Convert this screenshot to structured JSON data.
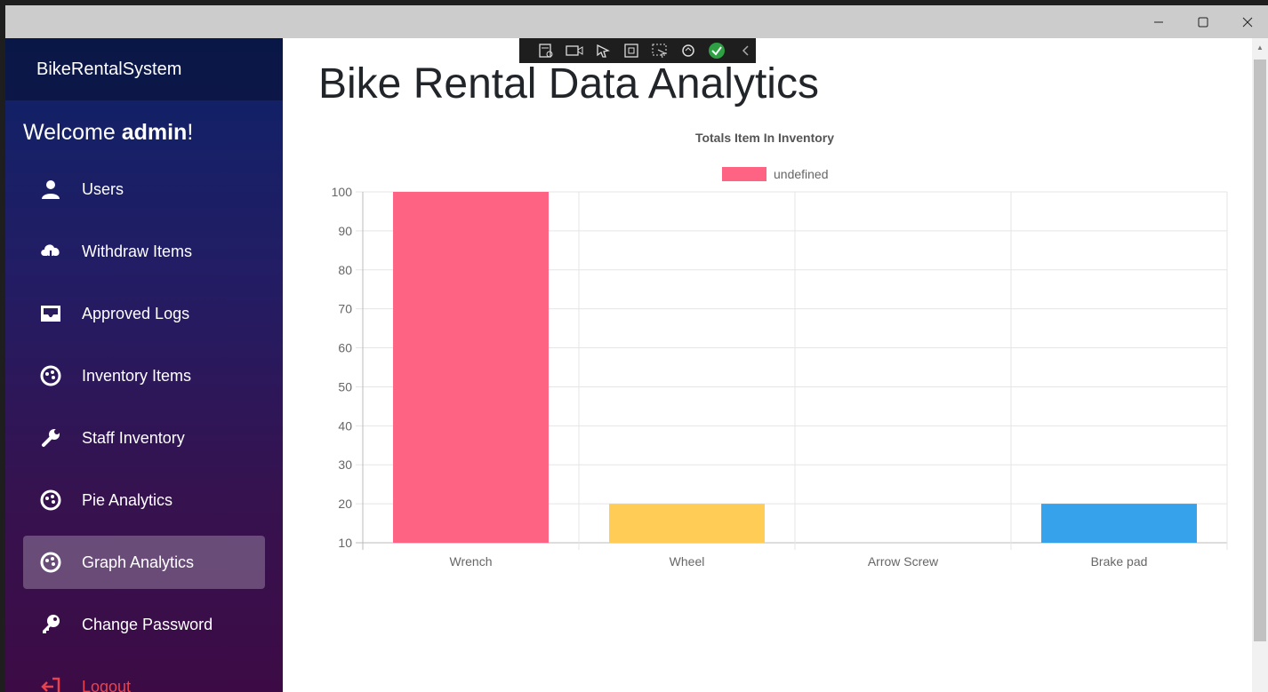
{
  "window": {
    "minimize_icon": "minimize-icon",
    "maximize_icon": "maximize-icon",
    "close_icon": "close-icon"
  },
  "sidebar": {
    "brand": "BikeRentalSystem",
    "welcome_prefix": "Welcome ",
    "welcome_user": "admin",
    "welcome_suffix": "!",
    "items": [
      {
        "label": "Users",
        "icon": "user-icon"
      },
      {
        "label": "Withdraw Items",
        "icon": "cloud-download-icon"
      },
      {
        "label": "Approved Logs",
        "icon": "inbox-icon"
      },
      {
        "label": "Inventory Items",
        "icon": "palette-icon"
      },
      {
        "label": "Staff Inventory",
        "icon": "wrench-icon"
      },
      {
        "label": "Pie Analytics",
        "icon": "palette-icon"
      },
      {
        "label": "Graph Analytics",
        "icon": "palette-icon",
        "active": true
      },
      {
        "label": "Change Password",
        "icon": "key-icon"
      },
      {
        "label": "Logout",
        "icon": "logout-icon"
      }
    ]
  },
  "main": {
    "title": "Bike Rental Data Analytics"
  },
  "chart_data": {
    "type": "bar",
    "title": "Totals Item In Inventory",
    "legend": [
      "undefined"
    ],
    "legend_position": "top",
    "categories": [
      "Wrench",
      "Wheel",
      "Arrow Screw",
      "Brake pad"
    ],
    "values": [
      100,
      20,
      10,
      20
    ],
    "colors": [
      "#ff6384",
      "#ffcd56",
      "#4bc0c0",
      "#36a2eb"
    ],
    "ylim": [
      10,
      100
    ],
    "yticks": [
      100,
      90,
      80,
      70,
      60,
      50,
      40,
      30,
      20,
      10
    ],
    "grid": true,
    "xlabel": "",
    "ylabel": ""
  }
}
